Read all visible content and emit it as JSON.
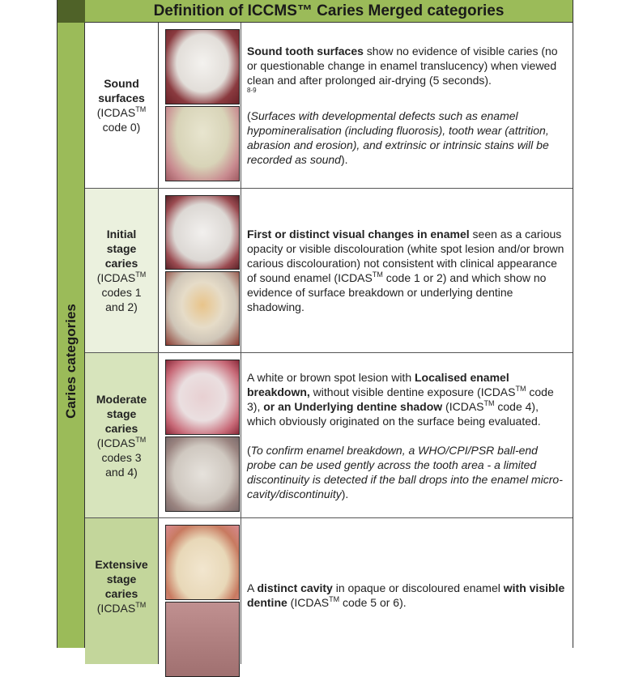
{
  "title": "Definition of ICCMS™ Caries Merged categories",
  "side_label": "Caries categories",
  "rows": [
    {
      "name": "Sound",
      "name2": "surfaces",
      "code_a": "(ICDAS",
      "tm": "TM",
      "code_b": "code 0)",
      "p1_bold": "Sound tooth surfaces",
      "p1": " show no evidence of visible caries (no or questionable change in enamel translucency) when viewed clean and after prolonged air-drying (5 seconds).",
      "ref": "8-9",
      "p2_pre": "(",
      "p2_it": "Surfaces with developmental defects such as enamel hypomineralisation (including fluorosis), tooth wear (attrition, abrasion and erosion), and extrinsic or intrinsic stains will be recorded as sound",
      "p2_post": ")."
    },
    {
      "name": "Initial",
      "name2": "stage",
      "name3": "caries",
      "code_a": "(ICDAS",
      "tm": "TM",
      "code_b": "codes 1",
      "code_c": "and 2)",
      "p1_bold": "First or distinct visual changes in enamel",
      "p1": " seen as a carious opacity or visible discolouration (white spot lesion and/or brown carious discolouration) not consistent with clinical appearance of sound enamel (ICDAS",
      "p1b": " code 1 or 2) and which show no evidence of surface breakdown or underlying dentine shadowing."
    },
    {
      "name": "Moderate",
      "name2": "stage",
      "name3": "caries",
      "code_a": "(ICDAS",
      "tm": "TM",
      "code_b": "codes 3",
      "code_c": "and 4)",
      "p1a": "A white or brown spot lesion with ",
      "p1_bold": "Localised enamel breakdown,",
      "p1b": " without visible dentine exposure (ICDAS",
      "p1c": " code 3), ",
      "p1_bold2": "or an Underlying dentine shadow",
      "p1d": " (ICDAS",
      "p1e": " code 4), which obviously originated on the surface being evaluated.",
      "p2_pre": "(",
      "p2_it": "To confirm enamel breakdown, a WHO/CPI/PSR ball-end probe can be used gently across the tooth area - a limited discontinuity is detected if the ball drops into the enamel micro-cavity/discontinuity",
      "p2_post": ")."
    },
    {
      "name": "Extensive",
      "name2": "stage",
      "name3": "caries",
      "code_a": "(ICDAS",
      "tm": "TM",
      "p1a": "A ",
      "p1_bold": "distinct cavity",
      "p1b": " in opaque or discoloured enamel ",
      "p1_bold2": "with visible dentine",
      "p1c": " (ICDAS",
      "p1d": " code 5 or 6)."
    }
  ],
  "colors": {
    "header": "#9bbb59",
    "corner": "#4f6228",
    "row1": "#ffffff",
    "row2": "#ebf1de",
    "row3": "#d7e4bc",
    "row4": "#c3d69b"
  }
}
